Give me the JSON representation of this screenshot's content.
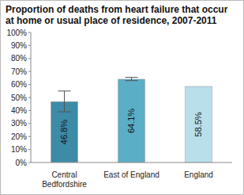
{
  "chart_data": {
    "type": "bar",
    "title": "Proportion of deaths from heart failure that occur at home or usual place of residence, 2007-2011",
    "categories": [
      "Central Bedfordshire",
      "East of England",
      "England"
    ],
    "values": [
      46.8,
      64.1,
      58.5
    ],
    "value_labels": [
      "46.8%",
      "64.1%",
      "58.5%"
    ],
    "data_labels": true,
    "colors": [
      "#3d8ba6",
      "#5aaec6",
      "#b9dfeb"
    ],
    "error_low": [
      39.0,
      63.0,
      null
    ],
    "error_high": [
      55.0,
      65.5,
      null
    ],
    "ylim": [
      0,
      100
    ],
    "yticks": [
      {
        "value": 0,
        "label": "0%"
      },
      {
        "value": 10,
        "label": "10%"
      },
      {
        "value": 20,
        "label": "20%"
      },
      {
        "value": 30,
        "label": "30%"
      },
      {
        "value": 40,
        "label": "40%"
      },
      {
        "value": 50,
        "label": "50%"
      },
      {
        "value": 60,
        "label": "60%"
      },
      {
        "value": 70,
        "label": "70%"
      },
      {
        "value": 80,
        "label": "80%"
      },
      {
        "value": 90,
        "label": "90%"
      },
      {
        "value": 100,
        "label": "100%"
      }
    ],
    "grid": false
  }
}
